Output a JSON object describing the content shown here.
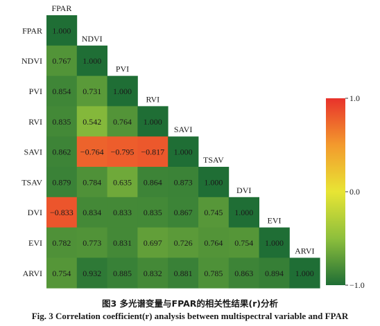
{
  "chart_data": {
    "type": "heatmap",
    "title": "",
    "variables": [
      "FPAR",
      "NDVI",
      "PVI",
      "RVI",
      "SAVI",
      "TSAV",
      "DVI",
      "EVI",
      "ARVI"
    ],
    "values": [
      [
        1.0
      ],
      [
        0.767,
        1.0
      ],
      [
        0.854,
        0.731,
        1.0
      ],
      [
        0.835,
        0.542,
        0.764,
        1.0
      ],
      [
        0.862,
        -0.764,
        -0.795,
        -0.817,
        1.0
      ],
      [
        0.879,
        0.784,
        0.635,
        0.864,
        0.873,
        1.0
      ],
      [
        -0.833,
        0.834,
        0.833,
        0.835,
        0.867,
        0.745,
        1.0
      ],
      [
        0.782,
        0.773,
        0.831,
        0.697,
        0.726,
        0.764,
        0.754,
        1.0
      ],
      [
        0.754,
        0.932,
        0.885,
        0.832,
        0.881,
        0.785,
        0.863,
        0.894,
        1.0
      ]
    ],
    "cell_labels": [
      [
        "1.000"
      ],
      [
        "0.767",
        "1.000"
      ],
      [
        "0.854",
        "0.731",
        "1.000"
      ],
      [
        "0.835",
        "0.542",
        "0.764",
        "1.000"
      ],
      [
        "0.862",
        "−0.764",
        "−0.795",
        "−0.817",
        "1.000"
      ],
      [
        "0.879",
        "0.784",
        "0.635",
        "0.864",
        "0.873",
        "1.000"
      ],
      [
        "−0.833",
        "0.834",
        "0.833",
        "0.835",
        "0.867",
        "0.745",
        "1.000"
      ],
      [
        "0.782",
        "0.773",
        "0.831",
        "0.697",
        "0.726",
        "0.764",
        "0.754",
        "1.000"
      ],
      [
        "0.754",
        "0.932",
        "0.885",
        "0.832",
        "0.881",
        "0.785",
        "0.863",
        "0.894",
        "1.000"
      ]
    ],
    "colorbar": {
      "range": [
        -1.0,
        1.0
      ],
      "ticks": [
        1.0,
        0.0,
        -1.0
      ],
      "tick_labels": [
        "1.0",
        "0.0",
        "−1.0"
      ],
      "colors": [
        "#1f6e35",
        "#8dbf3c",
        "#e8e534",
        "#f39a2d",
        "#e8322b"
      ]
    },
    "legend_position": "right",
    "grid": false
  },
  "captions": {
    "zh": "图3   多光谱变量与FPAR的相关性结果(r)分析",
    "en": "Fig. 3   Correlation coefficient(r) analysis between multispectral variable and FPAR"
  }
}
